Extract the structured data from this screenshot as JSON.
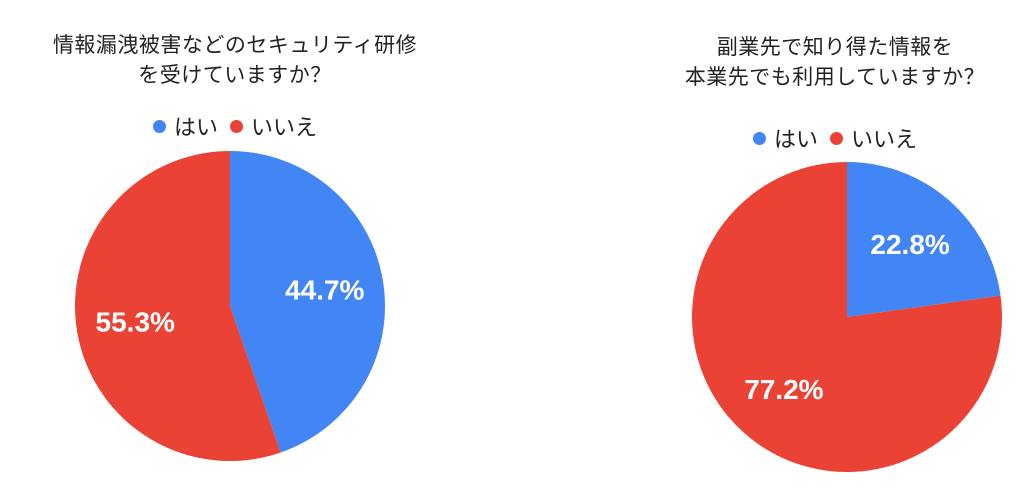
{
  "chart_data": [
    {
      "type": "pie",
      "title_lines": [
        "情報漏洩被害などのセキュリティ研修",
        "を受けていますか？"
      ],
      "legend_position": "top",
      "slices": [
        {
          "label": "はい",
          "value": 44.7,
          "display": "44.7%",
          "color": "#4285f4"
        },
        {
          "label": "いいえ",
          "value": 55.3,
          "display": "55.3%",
          "color": "#ea4335"
        }
      ]
    },
    {
      "type": "pie",
      "title_lines": [
        "副業先で知り得た情報を",
        "本業先でも利用していますか？"
      ],
      "legend_position": "top",
      "slices": [
        {
          "label": "はい",
          "value": 22.8,
          "display": "22.8%",
          "color": "#4285f4"
        },
        {
          "label": "いいえ",
          "value": 77.2,
          "display": "77.2%",
          "color": "#ea4335"
        }
      ]
    }
  ]
}
